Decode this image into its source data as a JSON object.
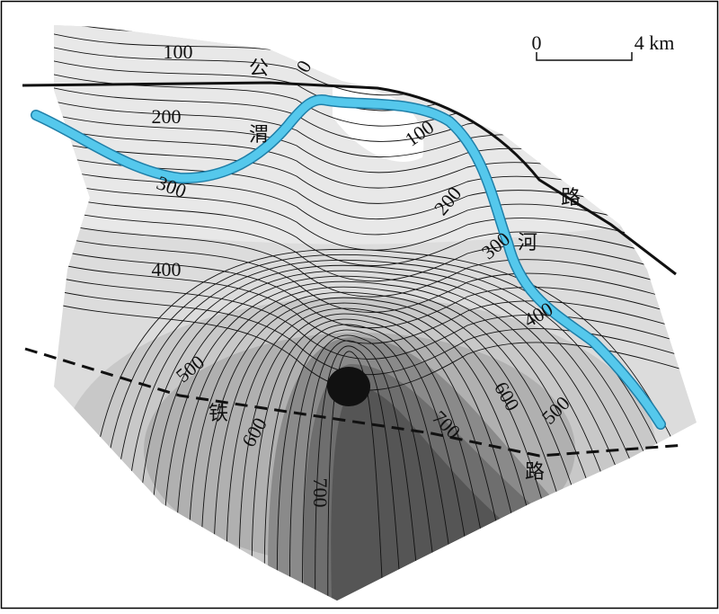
{
  "scale_bar": {
    "start": "0",
    "end": "4 km"
  },
  "labels": [
    "100",
    "0",
    "公",
    "200",
    "渭",
    "300",
    "100",
    "路",
    "200",
    "300",
    "河",
    "400",
    "400",
    "500",
    "600",
    "500",
    "铁",
    "700",
    "600",
    "路",
    "700"
  ]
}
